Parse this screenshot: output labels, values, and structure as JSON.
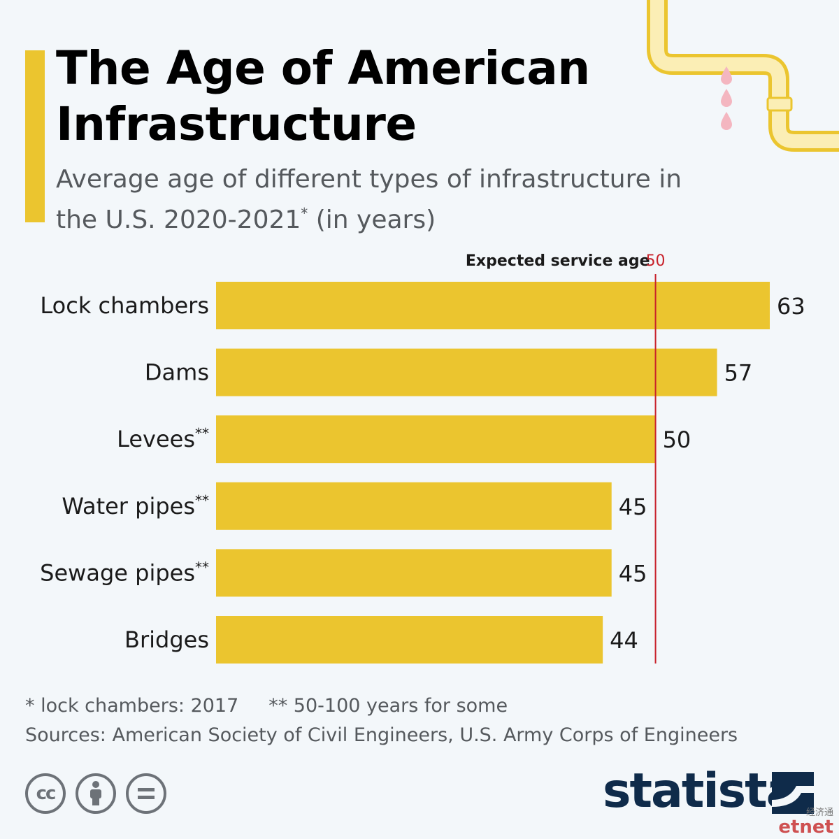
{
  "header": {
    "title": "The Age of American Infrastructure",
    "subtitle": "Average age of different types of infrastructure in the U.S. 2020-2021",
    "subtitle_mark": "*",
    "subtitle_unit": "(in years)"
  },
  "chart_data": {
    "type": "bar",
    "orientation": "horizontal",
    "categories": [
      "Lock chambers",
      "Dams",
      "Levees",
      "Water pipes",
      "Sewage pipes",
      "Bridges"
    ],
    "category_marks": [
      "",
      "",
      "**",
      "**",
      "**",
      ""
    ],
    "values": [
      63,
      57,
      50,
      45,
      45,
      44
    ],
    "xlim": [
      0,
      63
    ],
    "grid": false,
    "bar_color": "#ebc52f",
    "reference_line": {
      "label": "Expected service age",
      "value": 50,
      "color": "#c8222b"
    }
  },
  "footer": {
    "note_1": "* lock chambers: 2017",
    "note_2": "** 50-100 years for some",
    "sources": "Sources: American Society of Civil Engineers, U.S. Army Corps of Engineers",
    "brand": "statista",
    "license_icons": [
      "creative-commons-icon",
      "attribution-icon",
      "no-derivatives-icon"
    ]
  },
  "watermark": {
    "name": "etnet",
    "name_cn": "经济通"
  }
}
